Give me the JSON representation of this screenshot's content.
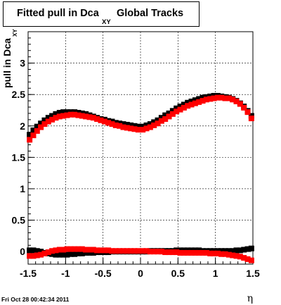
{
  "title": {
    "main": "Fitted pull in Dca",
    "subscript": "XY",
    "rest": "Global Tracks"
  },
  "timestamp": "Fri Oct 28 00:42:34 2011",
  "chart_data": {
    "type": "scatter",
    "xlabel": "η",
    "ylabel": "pull in Dca",
    "ylabel_subscript": "XY",
    "xlim": [
      -1.5,
      1.5
    ],
    "ylim": [
      -0.2,
      3.5
    ],
    "x_ticks": [
      "-1.5",
      "-1",
      "-0.5",
      "0",
      "0.5",
      "1",
      "1.5"
    ],
    "x_tick_values": [
      -1.5,
      -1,
      -0.5,
      0,
      0.5,
      1,
      1.5
    ],
    "y_ticks": [
      "0",
      "0.5",
      "1",
      "1.5",
      "2",
      "2.5",
      "3"
    ],
    "y_tick_values": [
      0,
      0.5,
      1,
      1.5,
      2,
      2.5,
      3
    ],
    "grid": true,
    "colors": {
      "black_series": "#000000",
      "red_series": "#ff0000"
    },
    "series": [
      {
        "color": "#000000",
        "x": [
          -1.48,
          -1.43,
          -1.38,
          -1.33,
          -1.28,
          -1.23,
          -1.18,
          -1.13,
          -1.08,
          -1.03,
          -0.98,
          -0.93,
          -0.88,
          -0.83,
          -0.78,
          -0.73,
          -0.68,
          -0.63,
          -0.58,
          -0.53,
          -0.48,
          -0.43,
          -0.38,
          -0.33,
          -0.28,
          -0.23,
          -0.18,
          -0.13,
          -0.08,
          -0.03,
          0.03,
          0.08,
          0.13,
          0.18,
          0.23,
          0.28,
          0.33,
          0.38,
          0.43,
          0.48,
          0.53,
          0.58,
          0.63,
          0.68,
          0.73,
          0.78,
          0.83,
          0.88,
          0.93,
          0.98,
          1.03,
          1.08,
          1.13,
          1.18,
          1.23,
          1.28,
          1.33,
          1.38,
          1.43,
          1.48
        ],
        "y": [
          1.86,
          1.93,
          1.99,
          2.04,
          2.09,
          2.13,
          2.16,
          2.19,
          2.21,
          2.22,
          2.22,
          2.22,
          2.22,
          2.21,
          2.2,
          2.19,
          2.17,
          2.15,
          2.13,
          2.11,
          2.1,
          2.08,
          2.07,
          2.05,
          2.04,
          2.03,
          2.02,
          2.01,
          2.0,
          1.99,
          1.99,
          2.01,
          2.03,
          2.06,
          2.09,
          2.13,
          2.17,
          2.2,
          2.24,
          2.28,
          2.31,
          2.34,
          2.37,
          2.39,
          2.41,
          2.43,
          2.45,
          2.46,
          2.47,
          2.48,
          2.48,
          2.47,
          2.46,
          2.45,
          2.43,
          2.4,
          2.36,
          2.31,
          2.24,
          2.16
        ]
      },
      {
        "color": "#ff0000",
        "x": [
          -1.48,
          -1.43,
          -1.38,
          -1.33,
          -1.28,
          -1.23,
          -1.18,
          -1.13,
          -1.08,
          -1.03,
          -0.98,
          -0.93,
          -0.88,
          -0.83,
          -0.78,
          -0.73,
          -0.68,
          -0.63,
          -0.58,
          -0.53,
          -0.48,
          -0.43,
          -0.38,
          -0.33,
          -0.28,
          -0.23,
          -0.18,
          -0.13,
          -0.08,
          -0.03,
          0.03,
          0.08,
          0.13,
          0.18,
          0.23,
          0.28,
          0.33,
          0.38,
          0.43,
          0.48,
          0.53,
          0.58,
          0.63,
          0.68,
          0.73,
          0.78,
          0.83,
          0.88,
          0.93,
          0.98,
          1.03,
          1.08,
          1.13,
          1.18,
          1.23,
          1.28,
          1.33,
          1.38,
          1.43,
          1.48
        ],
        "y": [
          1.78,
          1.85,
          1.92,
          1.98,
          2.03,
          2.07,
          2.1,
          2.13,
          2.15,
          2.16,
          2.17,
          2.18,
          2.18,
          2.17,
          2.16,
          2.15,
          2.14,
          2.13,
          2.11,
          2.09,
          2.07,
          2.05,
          2.03,
          2.01,
          2.0,
          1.98,
          1.97,
          1.96,
          1.95,
          1.94,
          1.94,
          1.96,
          1.98,
          2.01,
          2.04,
          2.08,
          2.11,
          2.15,
          2.19,
          2.23,
          2.26,
          2.29,
          2.32,
          2.34,
          2.36,
          2.38,
          2.4,
          2.42,
          2.43,
          2.44,
          2.45,
          2.45,
          2.44,
          2.44,
          2.42,
          2.39,
          2.35,
          2.29,
          2.22,
          2.12
        ]
      },
      {
        "color": "#000000",
        "x": [
          -1.48,
          -1.43,
          -1.38,
          -1.33,
          -1.28,
          -1.23,
          -1.18,
          -1.13,
          -1.08,
          -1.03,
          -0.98,
          -0.93,
          -0.88,
          -0.83,
          -0.78,
          -0.73,
          -0.68,
          -0.63,
          -0.58,
          -0.53,
          -0.48,
          -0.43,
          -0.38,
          -0.33,
          -0.28,
          -0.23,
          -0.18,
          -0.13,
          -0.08,
          -0.03,
          0.03,
          0.08,
          0.13,
          0.18,
          0.23,
          0.28,
          0.33,
          0.38,
          0.43,
          0.48,
          0.53,
          0.58,
          0.63,
          0.68,
          0.73,
          0.78,
          0.83,
          0.88,
          0.93,
          0.98,
          1.03,
          1.08,
          1.13,
          1.18,
          1.23,
          1.28,
          1.33,
          1.38,
          1.43,
          1.48
        ],
        "y": [
          0.02,
          0.02,
          0.01,
          0.0,
          -0.02,
          -0.03,
          -0.04,
          -0.05,
          -0.05,
          -0.05,
          -0.05,
          -0.04,
          -0.04,
          -0.03,
          -0.03,
          -0.02,
          -0.02,
          -0.02,
          -0.01,
          -0.01,
          -0.01,
          -0.01,
          0.0,
          0.0,
          0.0,
          0.0,
          0.0,
          0.0,
          0.0,
          0.0,
          0.0,
          0.0,
          0.01,
          0.01,
          0.01,
          0.01,
          0.01,
          0.01,
          0.01,
          0.02,
          0.02,
          0.02,
          0.02,
          0.02,
          0.02,
          0.02,
          0.01,
          0.01,
          0.01,
          0.01,
          0.01,
          0.01,
          0.01,
          0.01,
          0.01,
          0.02,
          0.02,
          0.03,
          0.04,
          0.05
        ]
      },
      {
        "color": "#ff0000",
        "x": [
          -1.48,
          -1.43,
          -1.38,
          -1.33,
          -1.28,
          -1.23,
          -1.18,
          -1.13,
          -1.08,
          -1.03,
          -0.98,
          -0.93,
          -0.88,
          -0.83,
          -0.78,
          -0.73,
          -0.68,
          -0.63,
          -0.58,
          -0.53,
          -0.48,
          -0.43,
          -0.38,
          -0.33,
          -0.28,
          -0.23,
          -0.18,
          -0.13,
          -0.08,
          -0.03,
          0.03,
          0.08,
          0.13,
          0.18,
          0.23,
          0.28,
          0.33,
          0.38,
          0.43,
          0.48,
          0.53,
          0.58,
          0.63,
          0.68,
          0.73,
          0.78,
          0.83,
          0.88,
          0.93,
          0.98,
          1.03,
          1.08,
          1.13,
          1.18,
          1.23,
          1.28,
          1.33,
          1.38,
          1.43,
          1.48
        ],
        "y": [
          -0.07,
          -0.07,
          -0.06,
          -0.05,
          -0.03,
          -0.01,
          0.01,
          0.02,
          0.03,
          0.03,
          0.04,
          0.04,
          0.04,
          0.04,
          0.04,
          0.03,
          0.03,
          0.03,
          0.02,
          0.02,
          0.02,
          0.02,
          0.01,
          0.01,
          0.01,
          0.01,
          0.01,
          0.01,
          0.01,
          0.01,
          0.01,
          0.01,
          0.0,
          0.0,
          0.0,
          0.0,
          -0.01,
          -0.01,
          -0.01,
          -0.01,
          -0.02,
          -0.02,
          -0.02,
          -0.02,
          -0.02,
          -0.02,
          -0.02,
          -0.02,
          -0.03,
          -0.03,
          -0.03,
          -0.04,
          -0.04,
          -0.05,
          -0.06,
          -0.07,
          -0.08,
          -0.1,
          -0.12,
          -0.14
        ]
      }
    ]
  }
}
